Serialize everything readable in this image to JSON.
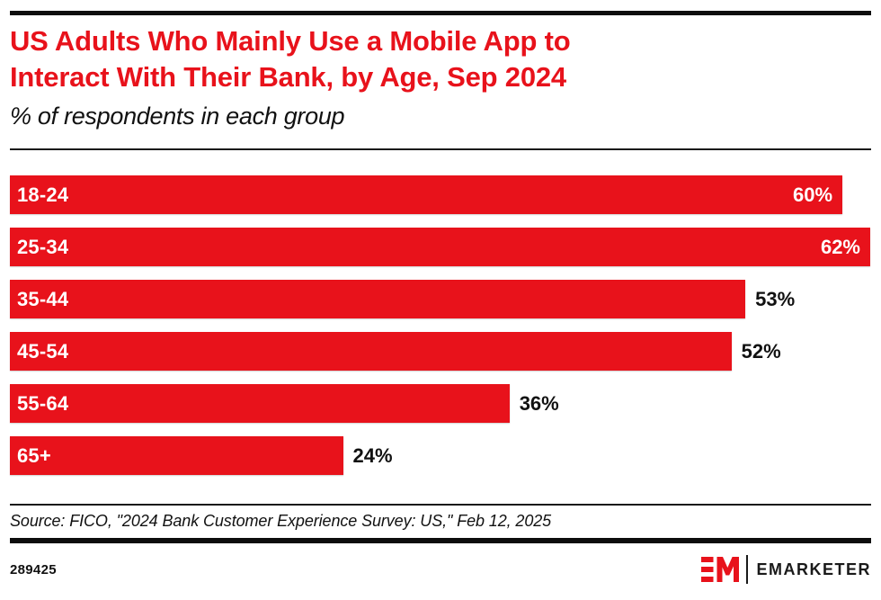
{
  "colors": {
    "accent_red": "#e8121b",
    "bar_black": "#0d0d0d"
  },
  "header": {
    "title_line1": "US Adults Who Mainly Use a Mobile App to",
    "title_line2": "Interact With Their Bank, by Age, Sep 2024",
    "subtitle": "% of respondents in each group"
  },
  "chart_data": {
    "type": "bar",
    "orientation": "horizontal",
    "title": "US Adults Who Mainly Use a Mobile App to Interact With Their Bank, by Age, Sep 2024",
    "subtitle": "% of respondents in each group",
    "categories": [
      "18-24",
      "25-34",
      "35-44",
      "45-54",
      "55-64",
      "65+"
    ],
    "values": [
      60,
      62,
      53,
      52,
      36,
      24
    ],
    "value_labels": [
      "60%",
      "62%",
      "53%",
      "52%",
      "36%",
      "24%"
    ],
    "unit": "%",
    "xlim": [
      0,
      62
    ],
    "bar_color": "#e8121b",
    "grid": false,
    "legend": false,
    "category_labels_inside_bars": true
  },
  "footer": {
    "source": "Source: FICO, \"2024 Bank Customer Experience Survey: US,\" Feb 12, 2025",
    "chart_id": "289425",
    "brand": "EMARKETER"
  }
}
